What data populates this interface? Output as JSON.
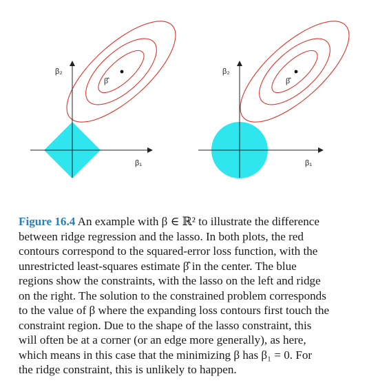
{
  "figure": {
    "left_panel": {
      "y_axis_label": "β₂",
      "x_axis_label": "β₁",
      "estimate_label": "β̂",
      "constraint": "diamond"
    },
    "right_panel": {
      "y_axis_label": "β₂",
      "x_axis_label": "β₁",
      "estimate_label": "β̂",
      "constraint": "circle"
    },
    "colors": {
      "contour": "#e0322a",
      "constraint": "#2fe6ee",
      "axis": "#222222",
      "caption_label": "#2a7fb8"
    }
  },
  "caption": {
    "label": "Figure 16.4",
    "lines": [
      "An example with β ∈ ℝ² to illustrate the difference",
      "between ridge regression and the lasso. In both plots, the red",
      "contours correspond to the squared-error loss function, with the",
      "unrestricted least-squares estimate β̂ in the center. The blue",
      "regions show the constraints, with the lasso on the left and ridge",
      "on the right. The solution to the constrained problem corresponds",
      "to the value of β where the expanding loss contours first touch the",
      "constraint region. Due to the shape of the lasso constraint, this",
      "will often be at a corner (or an edge more generally), as here,",
      "which means in this case that the minimizing β has β₁ = 0. For",
      "the ridge constraint, this is unlikely to happen."
    ]
  }
}
